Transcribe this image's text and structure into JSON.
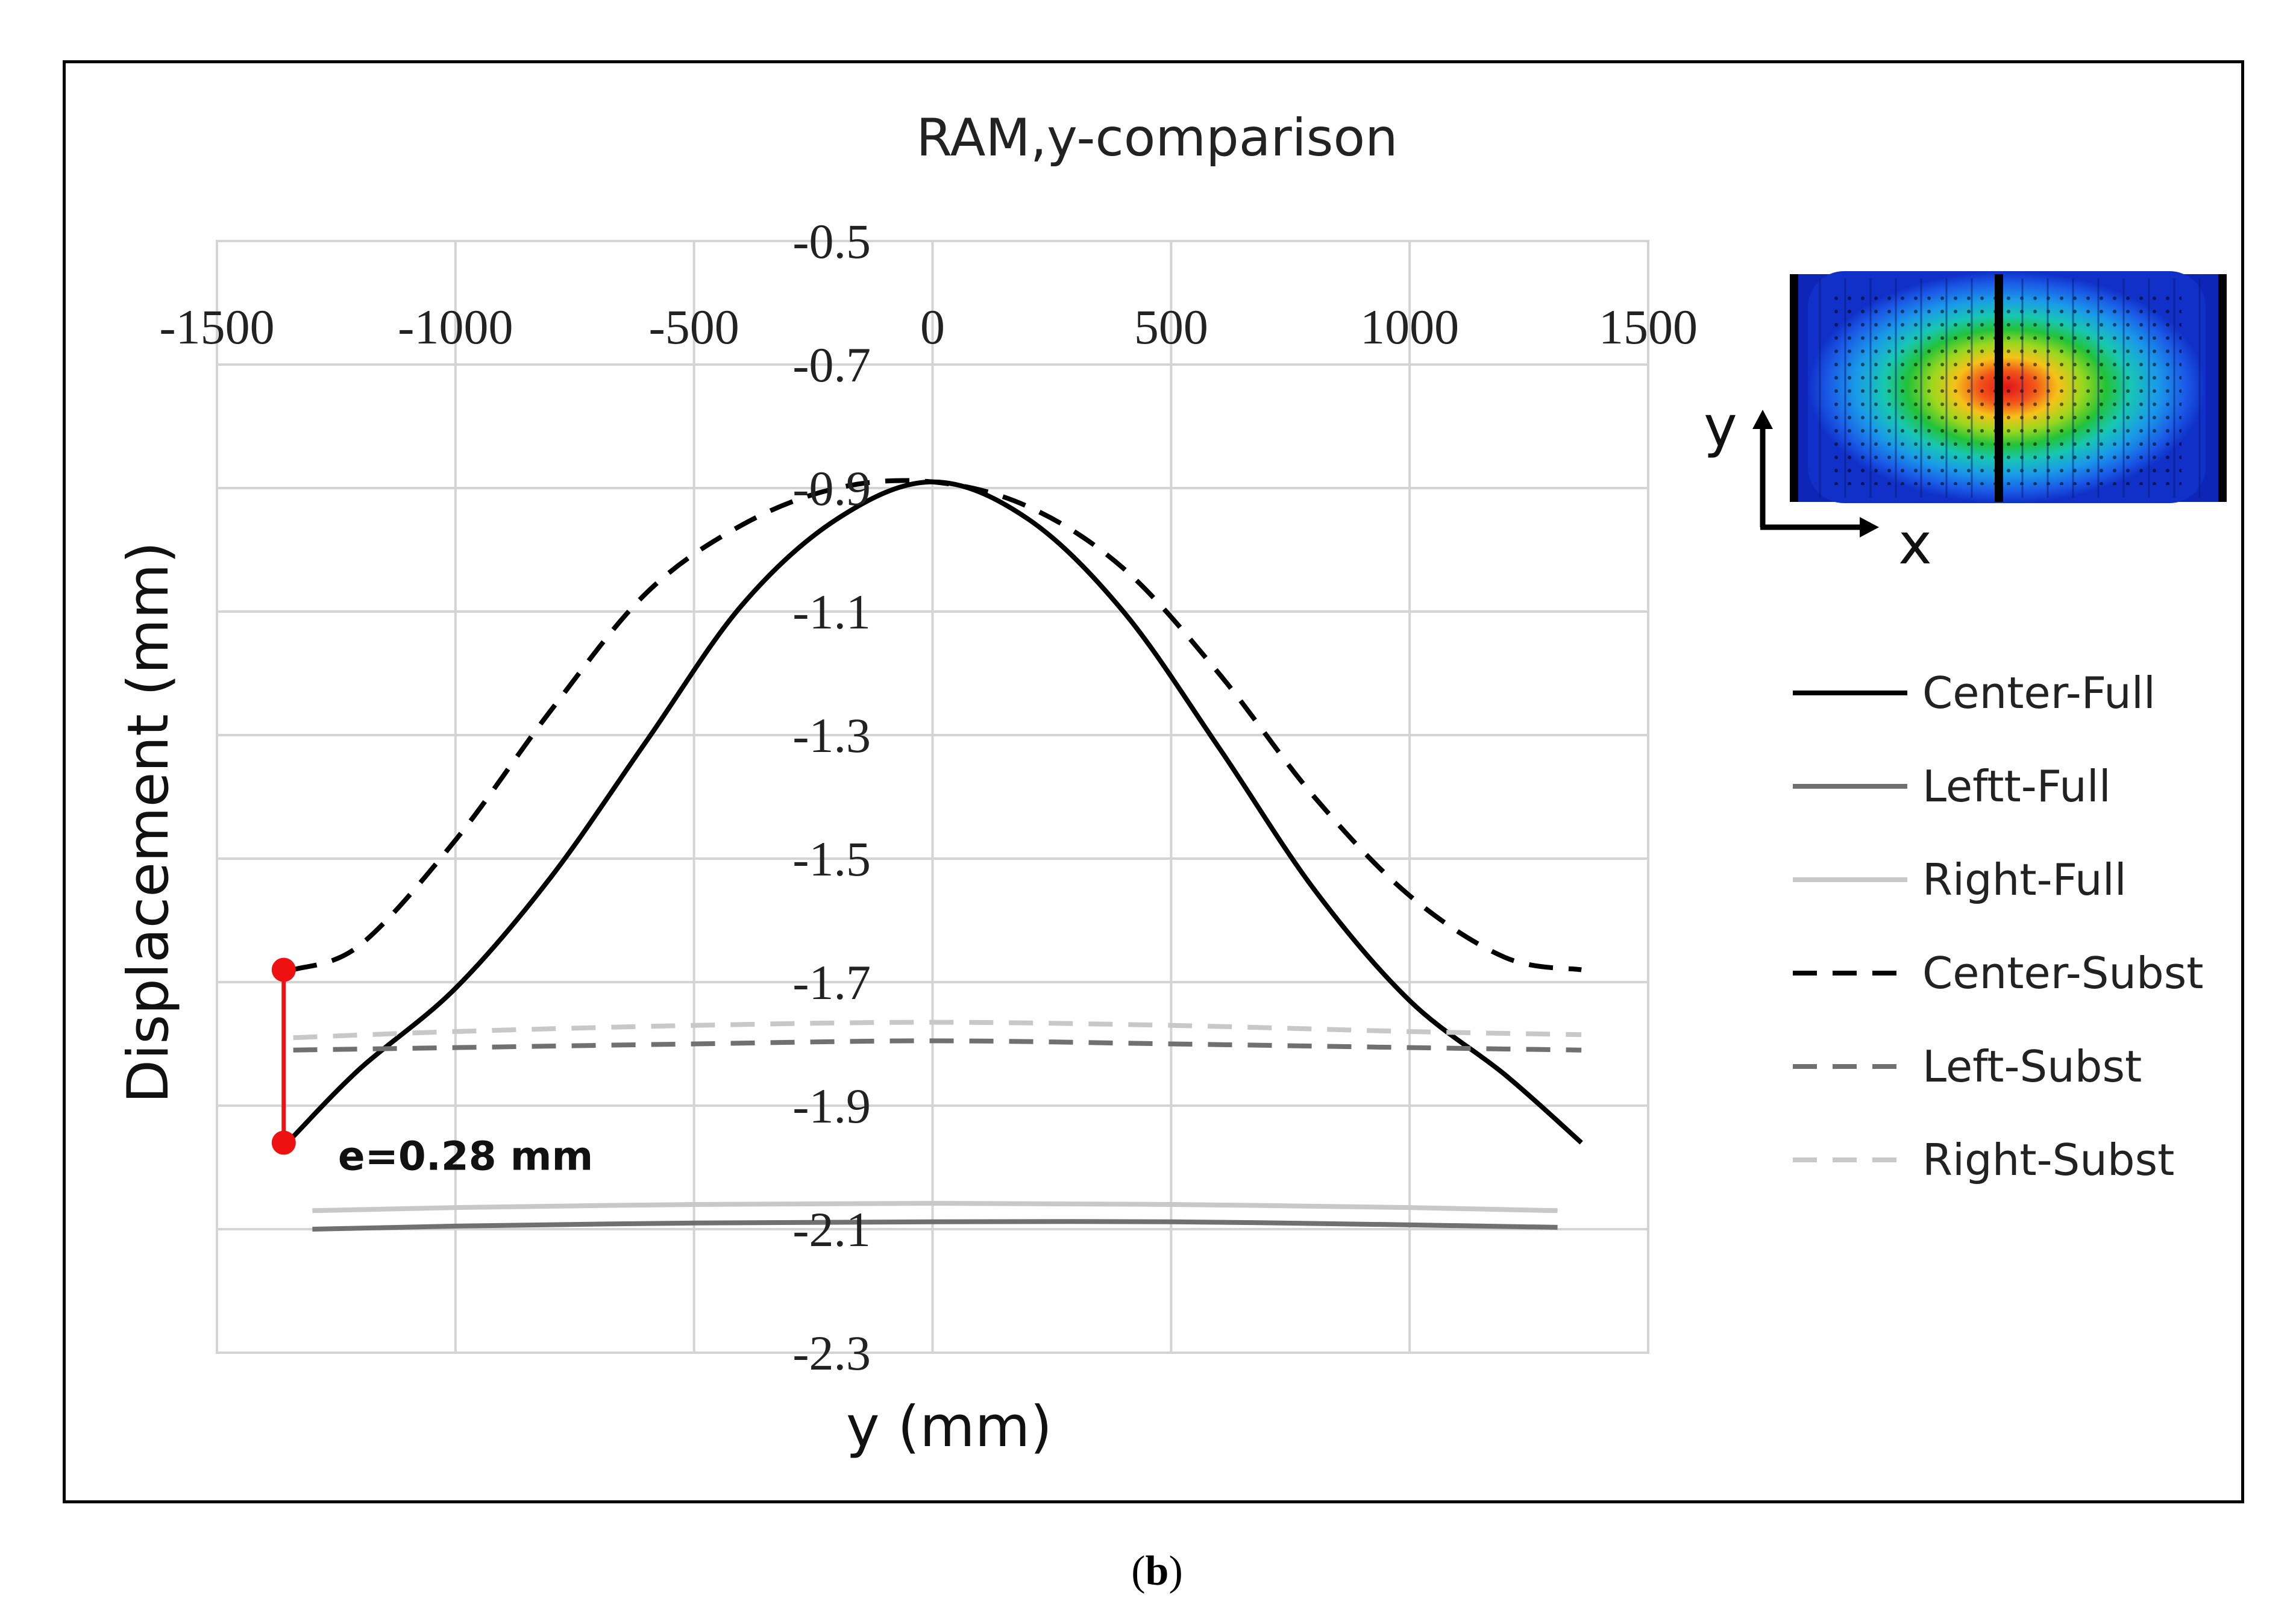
{
  "caption": {
    "open": "(",
    "letter": "b",
    "close": ")"
  },
  "chart_data": {
    "type": "line",
    "title": "RAM,y-comparison",
    "xlabel": "y (mm)",
    "ylabel": "Displacement (mm)",
    "xlim": [
      -1500,
      1500
    ],
    "ylim": [
      -2.3,
      -0.5
    ],
    "x_ticks": [
      -1500,
      -1000,
      -500,
      0,
      500,
      1000,
      1500
    ],
    "y_ticks": [
      -0.5,
      -0.7,
      -0.9,
      -1.1,
      -1.3,
      -1.5,
      -1.7,
      -1.9,
      -2.1,
      -2.3
    ],
    "x_tick_labels": [
      "-1500",
      "-1000",
      "-500",
      "0",
      "500",
      "1000",
      "1500"
    ],
    "y_tick_labels": [
      "-0.5",
      "-0.7",
      "-0.9",
      "-1.1",
      "-1.3",
      "-1.5",
      "-1.7",
      "-1.9",
      "-2.1",
      "-2.3"
    ],
    "grid": true,
    "legend_position": "right",
    "series": [
      {
        "name": "Center-Full",
        "color": "#000000",
        "dash": "solid",
        "x": [
          -1340,
          -1200,
          -1000,
          -800,
          -600,
          -400,
          -200,
          0,
          200,
          400,
          600,
          800,
          1000,
          1200,
          1360
        ],
        "y": [
          -1.95,
          -1.84,
          -1.71,
          -1.53,
          -1.31,
          -1.09,
          -0.95,
          -0.89,
          -0.95,
          -1.1,
          -1.32,
          -1.55,
          -1.73,
          -1.85,
          -1.96
        ]
      },
      {
        "name": "Leftt-Full",
        "color": "#707070",
        "dash": "solid",
        "x": [
          -1300,
          -1000,
          -500,
          0,
          500,
          1000,
          1310
        ],
        "y": [
          -2.1,
          -2.095,
          -2.09,
          -2.088,
          -2.088,
          -2.093,
          -2.097
        ]
      },
      {
        "name": "Right-Full",
        "color": "#c8c8c8",
        "dash": "solid",
        "x": [
          -1300,
          -1000,
          -500,
          0,
          500,
          1000,
          1310
        ],
        "y": [
          -2.07,
          -2.065,
          -2.06,
          -2.058,
          -2.06,
          -2.065,
          -2.07
        ]
      },
      {
        "name": "Center-Subst",
        "color": "#000000",
        "dash": "dashed",
        "x": [
          -1340,
          -1200,
          -1000,
          -800,
          -600,
          -400,
          -200,
          0,
          200,
          400,
          600,
          800,
          1000,
          1200,
          1360
        ],
        "y": [
          -1.68,
          -1.64,
          -1.47,
          -1.26,
          -1.07,
          -0.96,
          -0.9,
          -0.89,
          -0.93,
          -1.03,
          -1.2,
          -1.4,
          -1.56,
          -1.66,
          -1.68
        ]
      },
      {
        "name": "Left-Subst",
        "color": "#707070",
        "dash": "dashed",
        "x": [
          -1340,
          -1000,
          -500,
          0,
          500,
          1000,
          1360
        ],
        "y": [
          -1.81,
          -1.806,
          -1.8,
          -1.795,
          -1.8,
          -1.806,
          -1.81
        ]
      },
      {
        "name": "Right-Subst",
        "color": "#c8c8c8",
        "dash": "dashed",
        "x": [
          -1340,
          -1000,
          -500,
          0,
          500,
          1000,
          1360
        ],
        "y": [
          -1.79,
          -1.78,
          -1.77,
          -1.765,
          -1.77,
          -1.78,
          -1.785
        ]
      }
    ],
    "annotations": [
      {
        "text": "e=0.28 mm",
        "x": -1360,
        "y_top": -1.68,
        "y_bottom": -1.96,
        "color": "#ee1111"
      }
    ],
    "inset": {
      "axis_y_label": "y",
      "axis_x_label": "x",
      "description": "contour"
    }
  }
}
